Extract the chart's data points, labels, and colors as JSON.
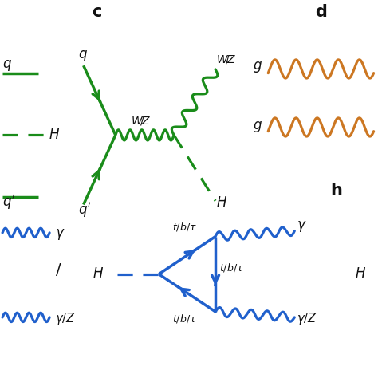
{
  "green_color": "#1a8c1a",
  "blue_color": "#2060cc",
  "orange_color": "#cc7722",
  "black_color": "#111111",
  "bg_color": "#ffffff",
  "label_c": "c",
  "label_d": "d",
  "label_h": "h",
  "figsize": [
    4.74,
    4.74
  ],
  "dpi": 100
}
